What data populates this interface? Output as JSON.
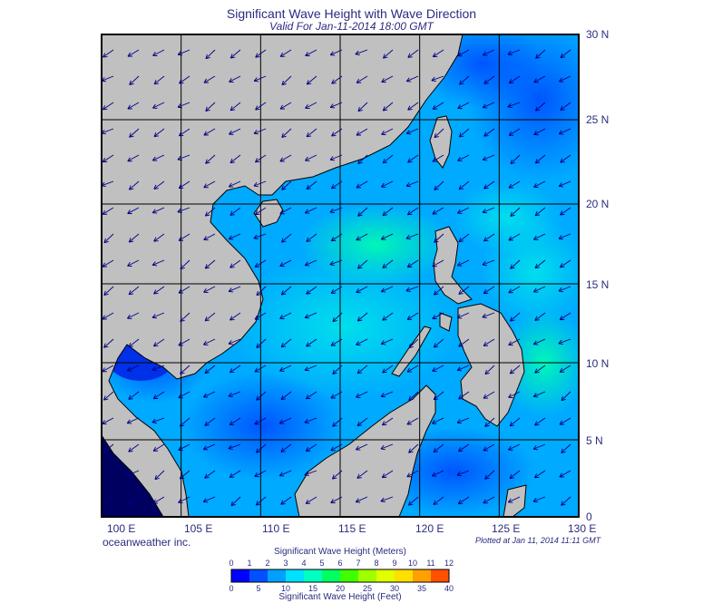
{
  "title": "Significant Wave Height with Wave Direction",
  "subtitle": "Valid For Jan-11-2014 18:00 GMT",
  "credit": "oceanweather inc.",
  "plotted": "Plotted at Jan 11, 2014 11:11 GMT",
  "lon_labels": [
    "100 E",
    "105 E",
    "110 E",
    "115 E",
    "120 E",
    "125 E",
    "130 E"
  ],
  "lat_labels": [
    "30 N",
    "25 N",
    "20 N",
    "15 N",
    "10 N",
    "5 N",
    "0"
  ],
  "colorbar": {
    "meters_title": "Significant Wave Height (Meters)",
    "feet_title": "Significant Wave Height (Feet)",
    "meters_ticks": [
      "0",
      "1",
      "2",
      "3",
      "4",
      "5",
      "6",
      "7",
      "8",
      "9",
      "10",
      "11",
      "12"
    ],
    "feet_ticks": [
      "0",
      "5",
      "10",
      "15",
      "20",
      "25",
      "30",
      "35",
      "40"
    ],
    "colors": [
      "#0000ff",
      "#0050ff",
      "#00a0ff",
      "#00e0ff",
      "#00ffc0",
      "#00ff60",
      "#40ff00",
      "#a0ff00",
      "#e0ff00",
      "#ffe000",
      "#ffa000",
      "#ff5000"
    ]
  },
  "colors": {
    "land": "#c0c0c0",
    "coast": "#000000",
    "arrows": "#000080",
    "grid": "#000000"
  }
}
